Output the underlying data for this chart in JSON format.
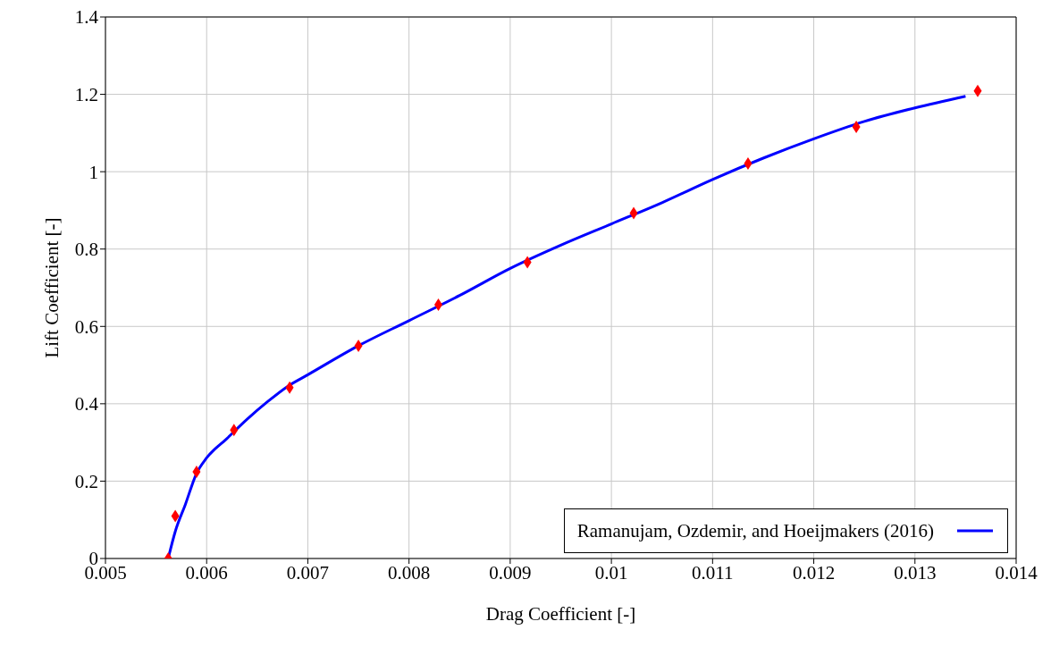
{
  "chart_data": {
    "type": "line",
    "xlabel": "Drag Coefficient [-]",
    "ylabel": "Lift Coefficient [-]",
    "xlim": [
      0.005,
      0.014
    ],
    "xticks": [
      0.005,
      0.006,
      0.007,
      0.008,
      0.009,
      0.01,
      0.011,
      0.012,
      0.013,
      0.014
    ],
    "ylim": [
      0,
      1.4
    ],
    "yticks": [
      0,
      0.2,
      0.4,
      0.6,
      0.8,
      1,
      1.2,
      1.4
    ],
    "grid": true,
    "legend": "bottom right",
    "series": [
      {
        "name": "Ramanujam, Ozdemir, and Hoeijmakers (2016)",
        "color": "#0000ff",
        "marker": "none",
        "x": [
          0.00562,
          0.00569,
          0.00579,
          0.0059,
          0.006,
          0.0062,
          0.0064,
          0.0066,
          0.0068,
          0.007,
          0.0075,
          0.008,
          0.0085,
          0.009,
          0.0095,
          0.01,
          0.0105,
          0.011,
          0.0115,
          0.012,
          0.0125,
          0.013,
          0.0135
        ],
        "values": [
          0,
          0.07,
          0.14,
          0.22,
          0.26,
          0.31,
          0.36,
          0.405,
          0.445,
          0.475,
          0.55,
          0.615,
          0.68,
          0.75,
          0.81,
          0.865,
          0.92,
          0.98,
          1.035,
          1.085,
          1.13,
          1.165,
          1.195
        ]
      },
      {
        "type": "scatter",
        "color": "#ff0000",
        "marker": "diamond",
        "x": [
          0.00562,
          0.00569,
          0.0059,
          0.00627,
          0.00682,
          0.0075,
          0.00829,
          0.00917,
          0.01022,
          0.01135,
          0.01242,
          0.01362
        ],
        "values": [
          0,
          0.11,
          0.224,
          0.332,
          0.442,
          0.55,
          0.656,
          0.766,
          0.893,
          1.021,
          1.116,
          1.209
        ]
      }
    ]
  }
}
